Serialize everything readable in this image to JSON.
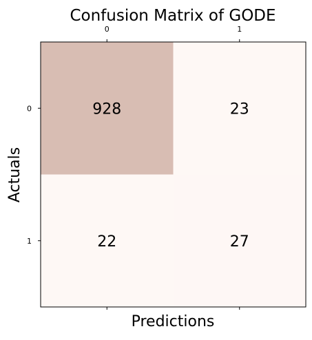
{
  "chart_data": {
    "type": "heatmap",
    "title": "Confusion Matrix of GODE",
    "xlabel": "Predictions",
    "ylabel": "Actuals",
    "x_tick_labels": [
      "0",
      "1"
    ],
    "y_tick_labels": [
      "0",
      "1"
    ],
    "x_ticks_position": "top",
    "matrix": [
      [
        928,
        23
      ],
      [
        22,
        27
      ]
    ],
    "colormap_colors": {
      "low": "#fff9f7",
      "high": "#d8bdb3"
    },
    "color_range": [
      0,
      928
    ],
    "grid": false,
    "colorbar": false
  }
}
